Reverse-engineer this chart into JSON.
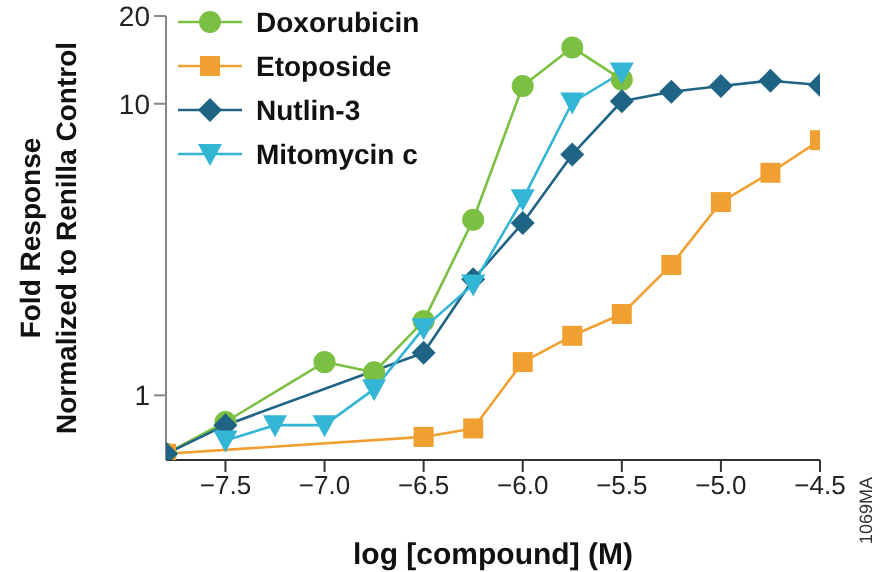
{
  "chart_data": {
    "type": "line",
    "xlabel": "log [compound] (M)",
    "ylabel": "Fold Response\nNormalized to Renilla Control",
    "log": "y",
    "xlim": [
      -7.8,
      -4.5
    ],
    "xticks": [
      {
        "value": -7.5,
        "label": "−7.5"
      },
      {
        "value": -7,
        "label": "−7.0"
      },
      {
        "value": -6.5,
        "label": "−6.5"
      },
      {
        "value": -6,
        "label": "−6.0"
      },
      {
        "value": -5.5,
        "label": "−5.5"
      },
      {
        "value": -5,
        "label": "−5.0"
      },
      {
        "value": -4.5,
        "label": "−4.5"
      }
    ],
    "ylim": [
      0.6,
      20
    ],
    "yticks": [
      1,
      10,
      20
    ],
    "grid": false,
    "legend": "top left",
    "annotations": [
      "1069MA"
    ],
    "series": [
      {
        "name": "Doxorubicin",
        "color": "#7bc043",
        "marker": "circle",
        "x": [
          -7.8,
          -7.5,
          -7,
          -6.75,
          -6.5,
          -6.25,
          -6,
          -5.75,
          -5.5
        ],
        "values": [
          0.63,
          0.81,
          1.3,
          1.2,
          1.8,
          4,
          11.5,
          15.6,
          12.1
        ]
      },
      {
        "name": "Etoposide",
        "color": "#f0a030",
        "marker": "square",
        "x": [
          -7.8,
          -6.5,
          -6.25,
          -6,
          -5.75,
          -5.5,
          -5.25,
          -5,
          -4.75,
          -4.5
        ],
        "values": [
          0.63,
          0.72,
          0.77,
          1.3,
          1.6,
          1.9,
          2.8,
          4.6,
          5.8,
          7.5
        ]
      },
      {
        "name": "Nutlin-3",
        "color": "#1f6485",
        "marker": "diamond",
        "x": [
          -7.8,
          -7.5,
          -6.5,
          -6.25,
          -6,
          -5.75,
          -5.5,
          -5.25,
          -5,
          -4.75,
          -4.5
        ],
        "values": [
          0.63,
          0.79,
          1.4,
          2.5,
          3.9,
          6.7,
          10.2,
          11,
          11.5,
          12,
          11.6
        ]
      },
      {
        "name": "Mitomycin c",
        "color": "#33b5d6",
        "marker": "triangle",
        "x": [
          -7.5,
          -7.25,
          -7,
          -6.75,
          -6.5,
          -6.25,
          -6,
          -5.75,
          -5.5
        ],
        "values": [
          0.7,
          0.79,
          0.79,
          1.05,
          1.7,
          2.4,
          4.7,
          10.1,
          12.8
        ]
      }
    ]
  }
}
